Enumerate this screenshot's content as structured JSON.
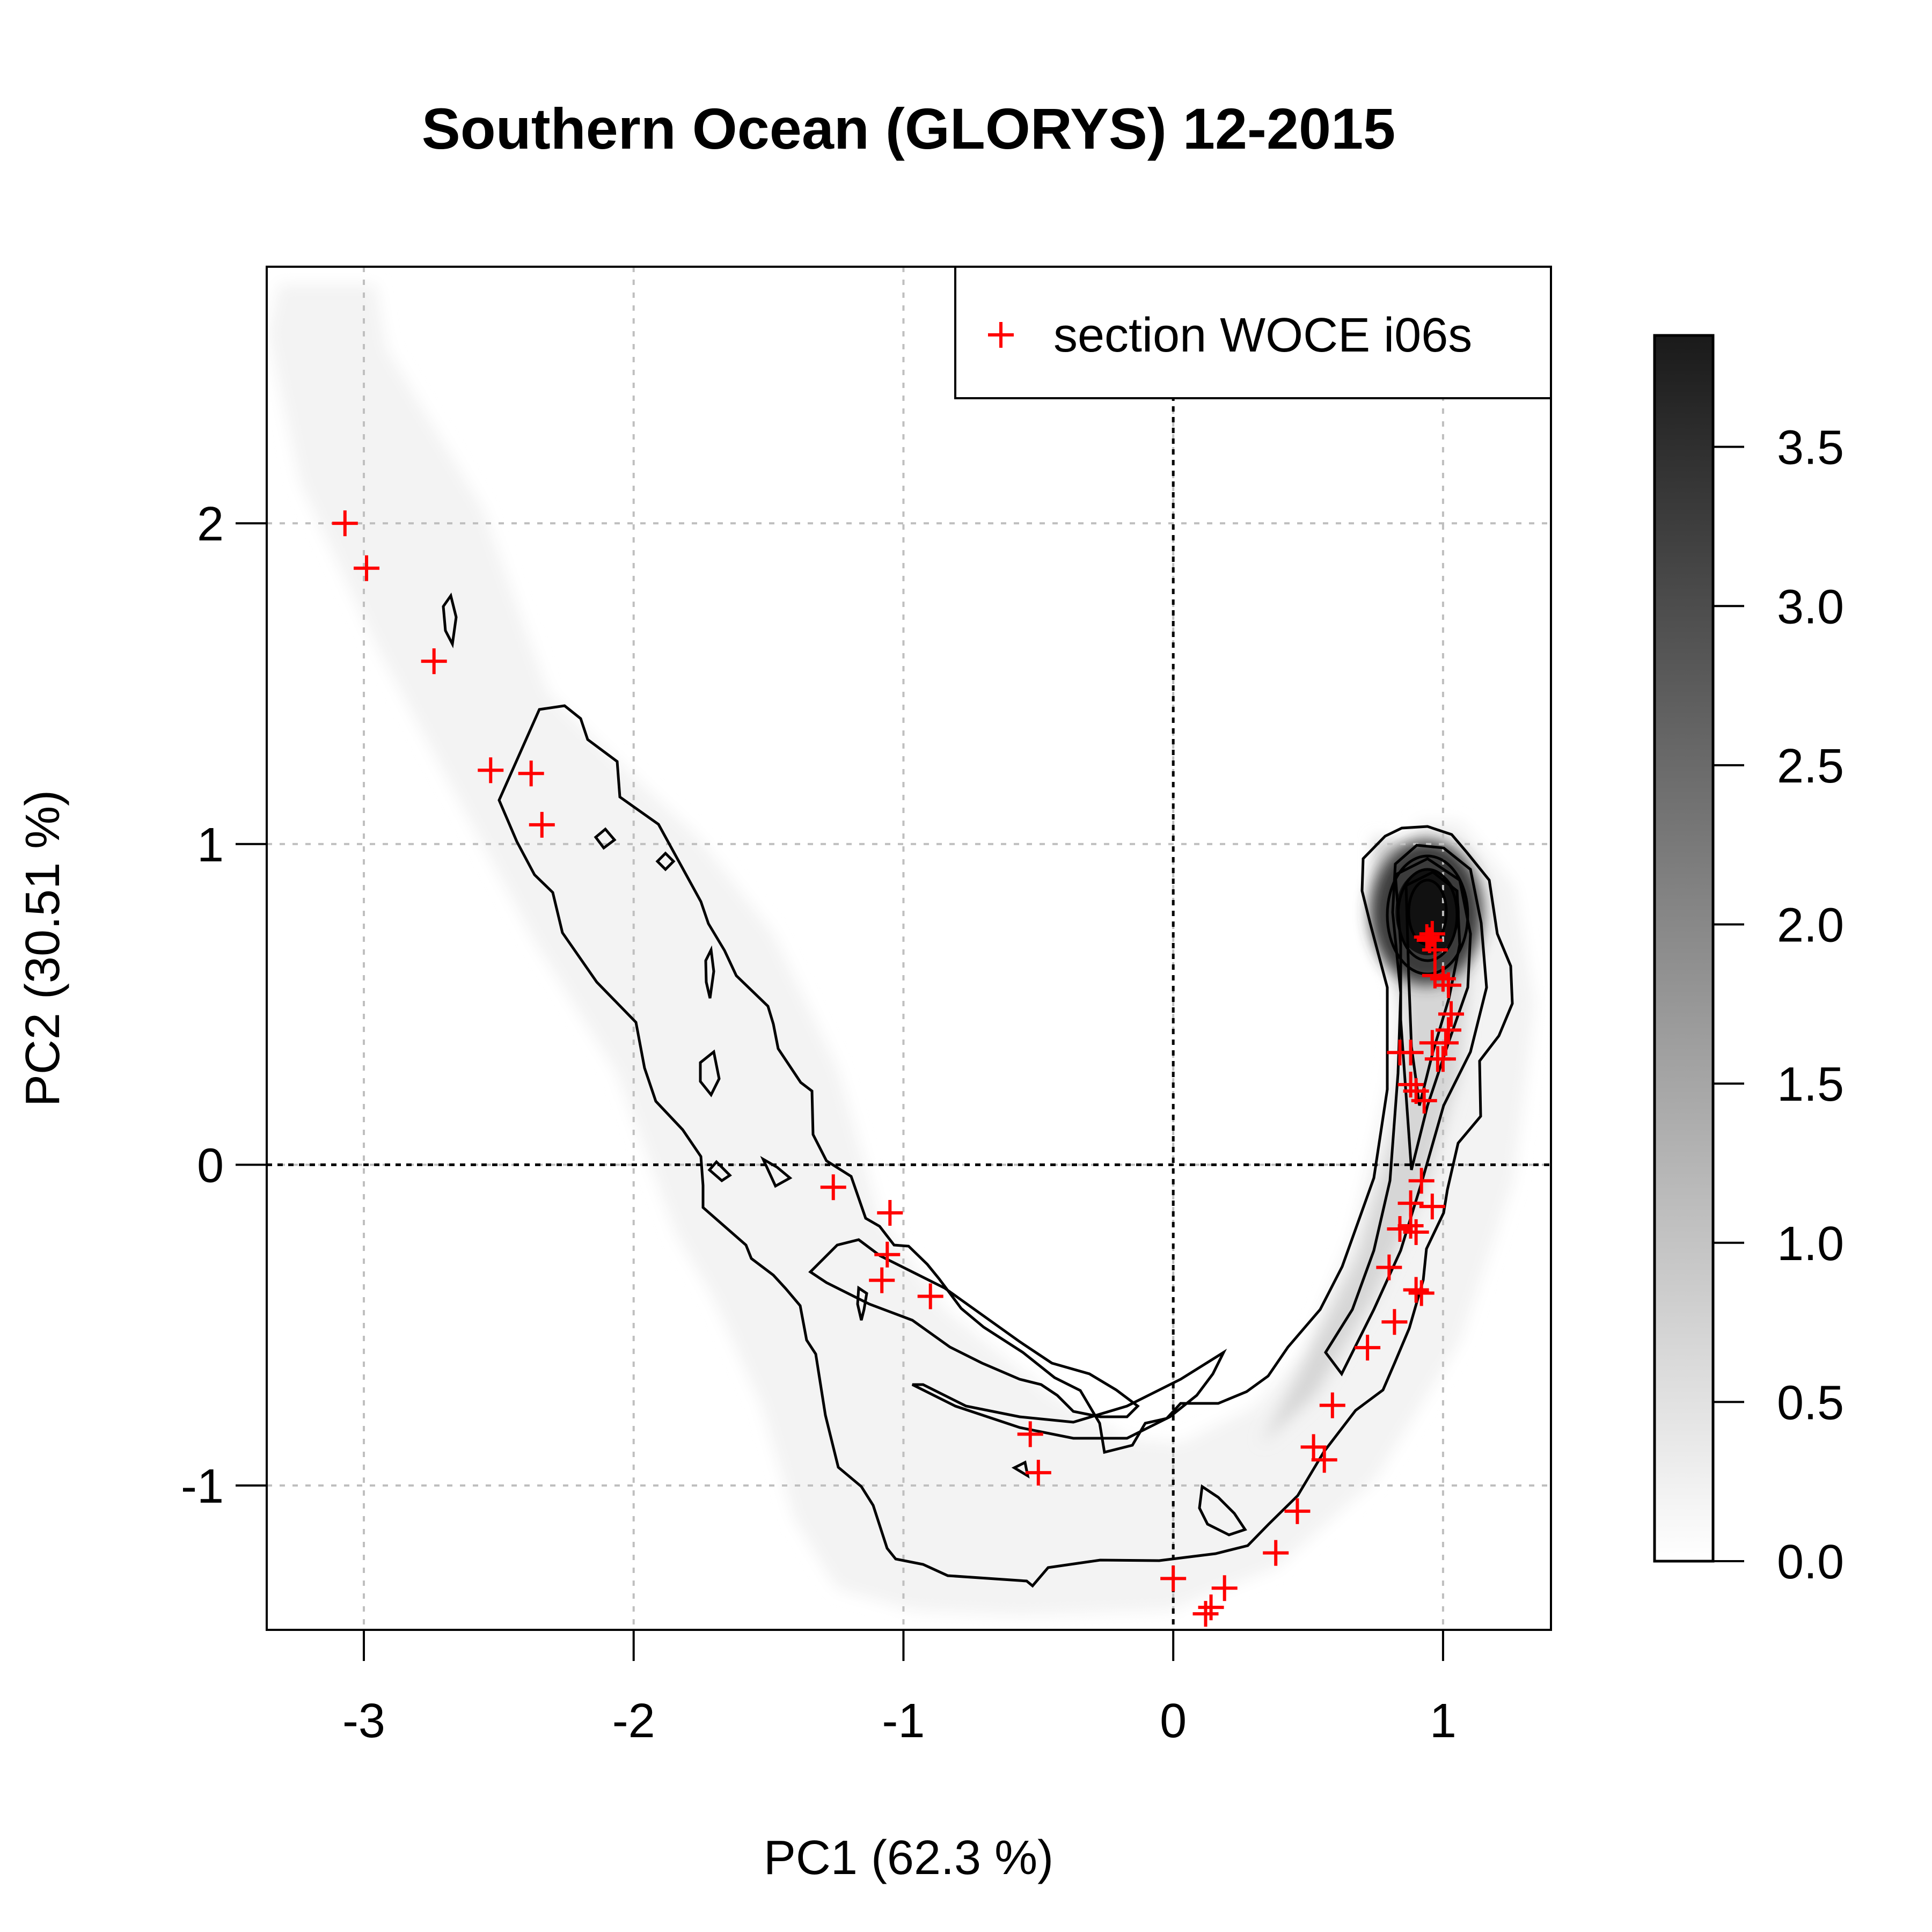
{
  "chart_data": {
    "type": "scatter",
    "title": "Southern Ocean (GLORYS) 12-2015",
    "xlabel": "PC1 (62.3 %)",
    "ylabel": "PC2 (30.51 %)",
    "xlim": [
      -3.36,
      1.4
    ],
    "ylim": [
      -1.45,
      2.8
    ],
    "x_ticks": [
      -3,
      -2,
      -1,
      0,
      1
    ],
    "y_ticks": [
      -1,
      0,
      1,
      2
    ],
    "x_tick_labels": [
      "-3",
      "-2",
      "-1",
      "0",
      "1"
    ],
    "y_tick_labels": [
      "-1",
      "0",
      "1",
      "2"
    ],
    "grid": true,
    "reference_lines": {
      "x": 0,
      "y": 0,
      "style": "dotted"
    },
    "legend": {
      "position": "top-right",
      "entries": [
        "section WOCE i06s"
      ]
    },
    "colorbar": {
      "min": 0.0,
      "max": 3.85,
      "ticks": [
        0.0,
        0.5,
        1.0,
        1.5,
        2.0,
        2.5,
        3.0,
        3.5
      ],
      "tick_labels": [
        "0.0",
        "0.5",
        "1.0",
        "1.5",
        "2.0",
        "2.5",
        "3.0",
        "3.5"
      ],
      "colors": [
        "#ffffff",
        "#1a1a1a"
      ]
    },
    "density_background": {
      "description": "grayscale kernel density of model profiles with black contour lines",
      "core_peak": {
        "x": 0.95,
        "y": 0.78,
        "value": 3.8
      }
    },
    "series": [
      {
        "name": "section WOCE i06s",
        "marker": "+",
        "color": "#ff0000",
        "points": [
          [
            -3.07,
            2.0
          ],
          [
            -2.99,
            1.86
          ],
          [
            -2.74,
            1.57
          ],
          [
            -2.53,
            1.23
          ],
          [
            -2.38,
            1.22
          ],
          [
            -2.34,
            1.06
          ],
          [
            -1.26,
            -0.07
          ],
          [
            -1.05,
            -0.15
          ],
          [
            -1.06,
            -0.28
          ],
          [
            -1.08,
            -0.36
          ],
          [
            -0.9,
            -0.41
          ],
          [
            -0.53,
            -0.84
          ],
          [
            -0.5,
            -0.96
          ],
          [
            0.0,
            -1.29
          ],
          [
            0.12,
            -1.4
          ],
          [
            0.14,
            -1.38
          ],
          [
            0.19,
            -1.32
          ],
          [
            0.38,
            -1.21
          ],
          [
            0.46,
            -1.08
          ],
          [
            0.52,
            -0.88
          ],
          [
            0.56,
            -0.92
          ],
          [
            0.59,
            -0.75
          ],
          [
            0.72,
            -0.57
          ],
          [
            0.8,
            -0.32
          ],
          [
            0.82,
            -0.49
          ],
          [
            0.84,
            -0.2
          ],
          [
            0.88,
            -0.12
          ],
          [
            0.88,
            -0.19
          ],
          [
            0.9,
            -0.21
          ],
          [
            0.92,
            -0.4
          ],
          [
            0.9,
            -0.39
          ],
          [
            0.92,
            -0.05
          ],
          [
            0.96,
            -0.13
          ],
          [
            0.88,
            0.25
          ],
          [
            0.9,
            0.23
          ],
          [
            0.84,
            0.35
          ],
          [
            0.88,
            0.35
          ],
          [
            0.93,
            0.2
          ],
          [
            0.96,
            0.38
          ],
          [
            0.98,
            0.33
          ],
          [
            1.0,
            0.33
          ],
          [
            1.01,
            0.38
          ],
          [
            1.02,
            0.42
          ],
          [
            1.03,
            0.47
          ],
          [
            0.97,
            0.59
          ],
          [
            1.0,
            0.58
          ],
          [
            1.02,
            0.56
          ],
          [
            0.94,
            0.71
          ],
          [
            0.95,
            0.7
          ],
          [
            0.96,
            0.72
          ],
          [
            0.97,
            0.67
          ]
        ]
      }
    ]
  }
}
